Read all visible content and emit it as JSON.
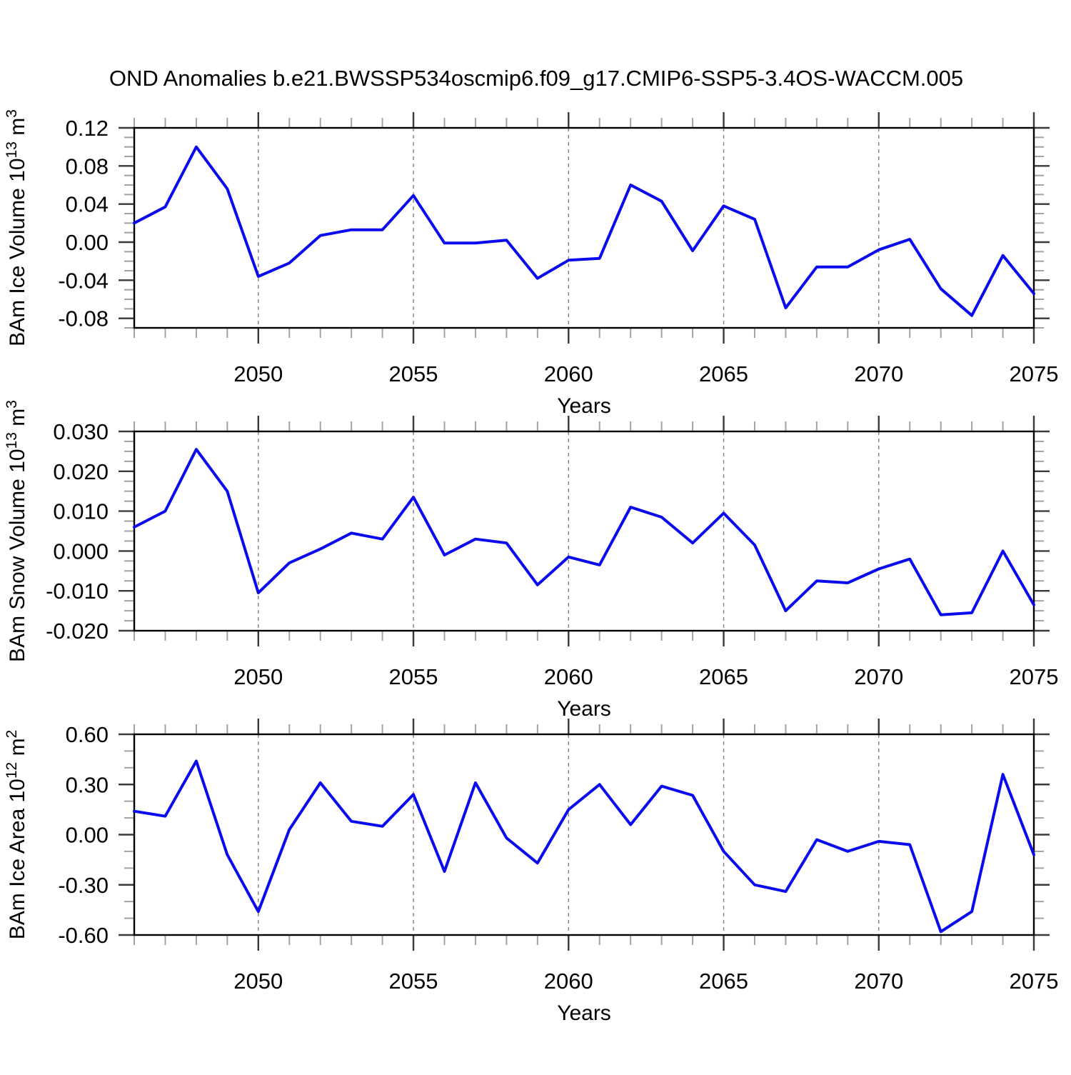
{
  "title": "OND Anomalies b.e21.BWSSP534oscmip6.f09_g17.CMIP6-SSP5-3.4OS-WACCM.005",
  "colors": {
    "line": "#0a0aee",
    "frame": "#000000",
    "grid": "#808080",
    "tick_major": "#3a3a3a",
    "tick_minor": "#a3a3a3",
    "background": "#ffffff",
    "text": "#000000"
  },
  "chart_data": [
    {
      "type": "line",
      "series_name": "BAm Ice Volume anomaly",
      "ylabel_text": "BAm Ice Volume 10^13 m^3",
      "ylabel_parts": [
        [
          "BAm Ice Volume 10",
          "normal"
        ],
        [
          "13",
          "sup"
        ],
        [
          " m",
          "normal"
        ],
        [
          "3",
          "sup"
        ]
      ],
      "xlabel": "Years",
      "xlim": [
        2046,
        2075
      ],
      "ylim": [
        -0.09,
        0.12
      ],
      "x": [
        2046,
        2047,
        2048,
        2049,
        2050,
        2051,
        2052,
        2053,
        2054,
        2055,
        2056,
        2057,
        2058,
        2059,
        2060,
        2061,
        2062,
        2063,
        2064,
        2065,
        2066,
        2067,
        2068,
        2069,
        2070,
        2071,
        2072,
        2073,
        2074,
        2075
      ],
      "values": [
        0.02,
        0.037,
        0.1,
        0.056,
        -0.036,
        -0.022,
        0.007,
        0.013,
        0.013,
        0.049,
        -0.001,
        -0.001,
        0.002,
        -0.038,
        -0.019,
        -0.017,
        0.06,
        0.043,
        -0.009,
        0.038,
        0.024,
        -0.069,
        -0.026,
        -0.026,
        -0.008,
        0.003,
        -0.049,
        -0.077,
        -0.014,
        -0.054
      ],
      "yticks": [
        {
          "v": 0.12,
          "label": "0.12"
        },
        {
          "v": 0.08,
          "label": "0.08"
        },
        {
          "v": 0.04,
          "label": "0.04"
        },
        {
          "v": 0.0,
          "label": "0.00"
        },
        {
          "v": -0.04,
          "label": "-0.04"
        },
        {
          "v": -0.08,
          "label": "-0.08"
        }
      ],
      "y_minor_step": 0.01,
      "xticks_major": [
        2050,
        2055,
        2060,
        2065,
        2070,
        2075
      ],
      "x_minor_step": 1,
      "grid_vertical_dashed_at": [
        2050,
        2055,
        2060,
        2065,
        2070
      ],
      "legend": "none"
    },
    {
      "type": "line",
      "series_name": "BAm Snow Volume anomaly",
      "ylabel_text": "BAm Snow Volume 10^13 m^3",
      "ylabel_parts": [
        [
          "BAm Snow Volume 10",
          "normal"
        ],
        [
          "13",
          "sup"
        ],
        [
          " m",
          "normal"
        ],
        [
          "3",
          "sup"
        ]
      ],
      "xlabel": "Years",
      "xlim": [
        2046,
        2075
      ],
      "ylim": [
        -0.02,
        0.03
      ],
      "x": [
        2046,
        2047,
        2048,
        2049,
        2050,
        2051,
        2052,
        2053,
        2054,
        2055,
        2056,
        2057,
        2058,
        2059,
        2060,
        2061,
        2062,
        2063,
        2064,
        2065,
        2066,
        2067,
        2068,
        2069,
        2070,
        2071,
        2072,
        2073,
        2074,
        2075
      ],
      "values": [
        0.006,
        0.01,
        0.0255,
        0.015,
        -0.0105,
        -0.003,
        0.0005,
        0.0045,
        0.003,
        0.0135,
        -0.001,
        0.003,
        0.002,
        -0.0085,
        -0.0015,
        -0.0035,
        0.011,
        0.0085,
        0.002,
        0.0095,
        0.0015,
        -0.015,
        -0.0075,
        -0.008,
        -0.0045,
        -0.002,
        -0.016,
        -0.0155,
        0.0,
        -0.0135
      ],
      "yticks": [
        {
          "v": 0.03,
          "label": "0.030"
        },
        {
          "v": 0.02,
          "label": "0.020"
        },
        {
          "v": 0.01,
          "label": "0.010"
        },
        {
          "v": 0.0,
          "label": "0.000"
        },
        {
          "v": -0.01,
          "label": "-0.010"
        },
        {
          "v": -0.02,
          "label": "-0.020"
        }
      ],
      "y_minor_step": 0.0025,
      "xticks_major": [
        2050,
        2055,
        2060,
        2065,
        2070,
        2075
      ],
      "x_minor_step": 1,
      "grid_vertical_dashed_at": [
        2050,
        2055,
        2060,
        2065,
        2070
      ],
      "legend": "none"
    },
    {
      "type": "line",
      "series_name": "BAm Ice Area anomaly",
      "ylabel_text": "BAm Ice Area 10^12 m^2",
      "ylabel_parts": [
        [
          "BAm Ice Area 10",
          "normal"
        ],
        [
          "12",
          "sup"
        ],
        [
          " m",
          "normal"
        ],
        [
          "2",
          "sup"
        ]
      ],
      "xlabel": "Years",
      "xlim": [
        2046,
        2075
      ],
      "ylim": [
        -0.6,
        0.6
      ],
      "x": [
        2046,
        2047,
        2048,
        2049,
        2050,
        2051,
        2052,
        2053,
        2054,
        2055,
        2056,
        2057,
        2058,
        2059,
        2060,
        2061,
        2062,
        2063,
        2064,
        2065,
        2066,
        2067,
        2068,
        2069,
        2070,
        2071,
        2072,
        2073,
        2074,
        2075
      ],
      "values": [
        0.14,
        0.11,
        0.44,
        -0.12,
        -0.46,
        0.03,
        0.31,
        0.08,
        0.05,
        0.24,
        -0.22,
        0.31,
        -0.02,
        -0.17,
        0.15,
        0.3,
        0.06,
        0.29,
        0.235,
        -0.1,
        -0.3,
        -0.34,
        -0.03,
        -0.1,
        -0.04,
        -0.06,
        -0.58,
        -0.46,
        0.36,
        -0.12
      ],
      "yticks": [
        {
          "v": 0.6,
          "label": "0.60"
        },
        {
          "v": 0.3,
          "label": "0.30"
        },
        {
          "v": 0.0,
          "label": "0.00"
        },
        {
          "v": -0.3,
          "label": "-0.30"
        },
        {
          "v": -0.6,
          "label": "-0.60"
        }
      ],
      "y_minor_step": 0.1,
      "xticks_major": [
        2050,
        2055,
        2060,
        2065,
        2070,
        2075
      ],
      "x_minor_step": 1,
      "grid_vertical_dashed_at": [
        2050,
        2055,
        2060,
        2065,
        2070
      ],
      "legend": "none"
    }
  ]
}
